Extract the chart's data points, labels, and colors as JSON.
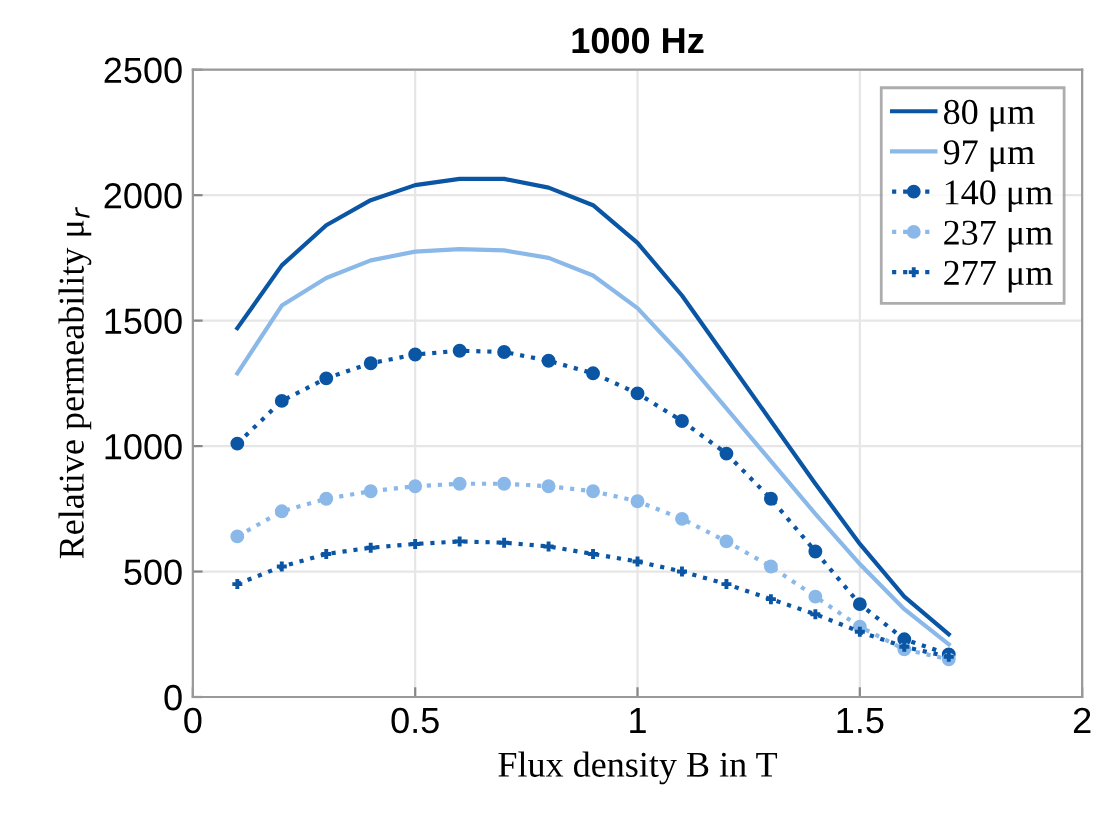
{
  "chart_data": {
    "type": "line",
    "title": "1000 Hz",
    "xlabel": "Flux density B in T",
    "ylabel": "Relative permeability μ$_{r}$",
    "x": [
      0.1,
      0.2,
      0.3,
      0.4,
      0.5,
      0.6,
      0.7,
      0.8,
      0.9,
      1.0,
      1.1,
      1.2,
      1.3,
      1.4,
      1.5,
      1.6,
      1.7
    ],
    "series": [
      {
        "name": "80 μm",
        "color": "#0b56a4",
        "marker": "none",
        "line_style": "solid",
        "values": [
          1470,
          1720,
          1880,
          1980,
          2040,
          2065,
          2065,
          2030,
          1960,
          1810,
          1600,
          1350,
          1100,
          850,
          610,
          400,
          250
        ]
      },
      {
        "name": "97 μm",
        "color": "#8ab8e8",
        "marker": "none",
        "line_style": "solid",
        "values": [
          1290,
          1560,
          1670,
          1740,
          1775,
          1785,
          1780,
          1750,
          1680,
          1550,
          1360,
          1150,
          940,
          730,
          530,
          350,
          210
        ]
      },
      {
        "name": "140 μm",
        "color": "#0b56a4",
        "marker": "circle",
        "line_style": "dotted",
        "values": [
          1010,
          1180,
          1270,
          1330,
          1365,
          1380,
          1375,
          1340,
          1290,
          1210,
          1100,
          970,
          790,
          580,
          370,
          230,
          170
        ]
      },
      {
        "name": "237 μm",
        "color": "#8ab8e8",
        "marker": "circle",
        "line_style": "dotted",
        "values": [
          640,
          740,
          790,
          820,
          840,
          850,
          850,
          840,
          820,
          780,
          710,
          620,
          520,
          400,
          280,
          190,
          150
        ]
      },
      {
        "name": "277 μm",
        "color": "#0b56a4",
        "marker": "cross",
        "line_style": "dotted",
        "values": [
          450,
          520,
          570,
          595,
          610,
          620,
          615,
          600,
          570,
          540,
          500,
          450,
          390,
          330,
          260,
          200,
          160
        ]
      }
    ],
    "xlim": [
      0,
      2
    ],
    "xticks": [
      0,
      0.5,
      1,
      1.5,
      2
    ],
    "ylim": [
      0,
      2500
    ],
    "yticks": [
      0,
      500,
      1000,
      1500,
      2000,
      2500
    ],
    "grid": true,
    "legend": "top right"
  }
}
